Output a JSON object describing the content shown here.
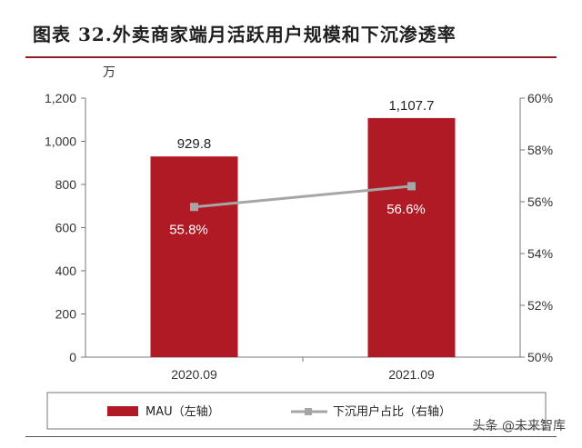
{
  "title": "图表 32.外卖商家端月活跃用户规模和下沉渗透率",
  "watermark": "头条 @未来智库",
  "colors": {
    "bar": "#b01a24",
    "line": "#a6a6a6",
    "accent": "#8f1b22"
  },
  "chart_data": {
    "type": "bar",
    "categories": [
      "2020.09",
      "2021.09"
    ],
    "unit_left": "万",
    "series": [
      {
        "name": "MAU（左轴）",
        "type": "bar",
        "axis": "left",
        "values": [
          929.8,
          1107.7
        ],
        "labels": [
          "929.8",
          "1,107.7"
        ]
      },
      {
        "name": "下沉用户占比（右轴）",
        "type": "line",
        "axis": "right",
        "values": [
          55.8,
          56.6
        ],
        "labels": [
          "55.8%",
          "56.6%"
        ]
      }
    ],
    "y_left": {
      "min": 0,
      "max": 1200,
      "ticks": [
        0,
        200,
        400,
        600,
        800,
        1000,
        1200
      ],
      "tick_labels": [
        "0",
        "200",
        "400",
        "600",
        "800",
        "1,000",
        "1,200"
      ]
    },
    "y_right": {
      "min": 50,
      "max": 60,
      "ticks": [
        50,
        52,
        54,
        56,
        58,
        60
      ],
      "tick_labels": [
        "50%",
        "52%",
        "54%",
        "56%",
        "58%",
        "60%"
      ]
    },
    "grid": false,
    "legend": "bottom"
  }
}
